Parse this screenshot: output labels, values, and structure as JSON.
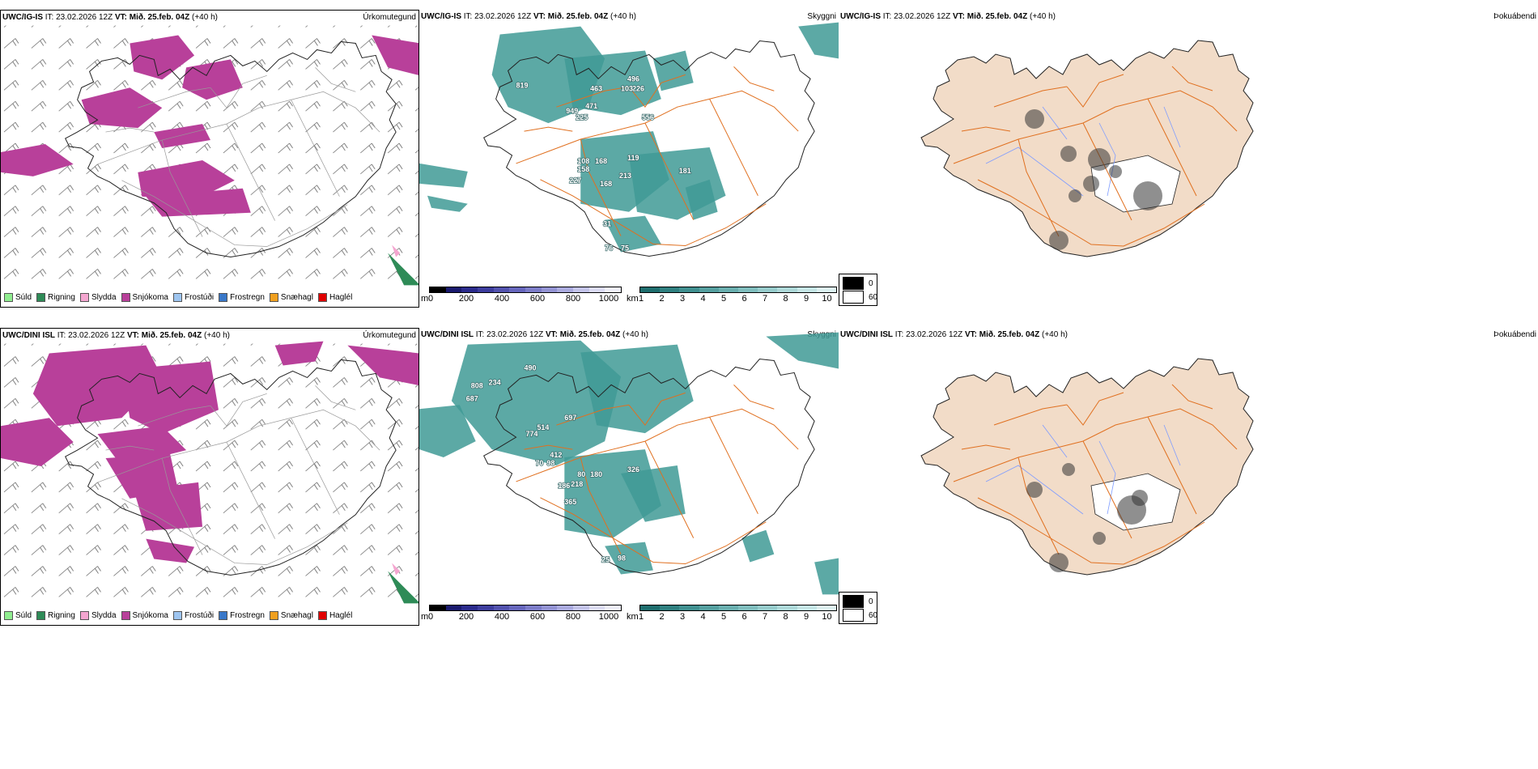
{
  "rows": [
    {
      "model": "UWC/IG-IS",
      "it_label": "IT:",
      "it_value": "23.02.2026 12Z",
      "vt_label": "VT:",
      "vt_value": "Mið. 25.feb. 04Z",
      "lead": "(+40 h)",
      "precip_title": "Úrkomutegund",
      "cloud_title": "Skyggni",
      "fog_title": "Þokuábendi",
      "cloud_numbers": [
        "819",
        "463",
        "496",
        "226",
        "103",
        "949",
        "471",
        "225",
        "556",
        "108",
        "168",
        "119",
        "158",
        "213",
        "227",
        "168",
        "181",
        "31",
        "76",
        "75"
      ]
    },
    {
      "model": "UWC/DINI ISL",
      "it_label": "IT:",
      "it_value": "23.02.2026 12Z",
      "vt_label": "VT:",
      "vt_value": "Mið. 25.feb. 04Z",
      "lead": "(+40 h)",
      "precip_title": "Úrkomutegund",
      "cloud_title": "Skyggni",
      "fog_title": "Þokuábendi",
      "cloud_numbers": [
        "490",
        "808",
        "234",
        "687",
        "514",
        "697",
        "774",
        "412",
        "70",
        "98",
        "80",
        "180",
        "326",
        "186",
        "218",
        "365",
        "25",
        "98"
      ]
    }
  ],
  "precip_legend": [
    {
      "label": "Súld",
      "color": "#90ee90"
    },
    {
      "label": "Rigning",
      "color": "#2e8b57"
    },
    {
      "label": "Slydda",
      "color": "#f4a6d0"
    },
    {
      "label": "Snjókoma",
      "color": "#b8409a"
    },
    {
      "label": "Frostúði",
      "color": "#9ec5f0"
    },
    {
      "label": "Frostregn",
      "color": "#3a78c8"
    },
    {
      "label": "Snæhagl",
      "color": "#f0a020"
    },
    {
      "label": "Haglél",
      "color": "#e00000"
    }
  ],
  "cloud_base_bar": {
    "unit": "m",
    "ticks": [
      "0",
      "200",
      "400",
      "600",
      "800",
      "1000"
    ],
    "colors": [
      "#000000",
      "#1a1a6e",
      "#2b2b8c",
      "#3d3d9e",
      "#5252ae",
      "#6767bd",
      "#7d7dc9",
      "#9494d4",
      "#ababdf",
      "#c4c4ea",
      "#dcdcf4",
      "#f0f0fa"
    ]
  },
  "visibility_bar": {
    "unit": "km",
    "ticks": [
      "1",
      "2",
      "3",
      "4",
      "5",
      "6",
      "7",
      "8",
      "9",
      "10"
    ],
    "colors": [
      "#1e6e6e",
      "#2f8080",
      "#409090",
      "#55a0a0",
      "#6aafaf",
      "#80bebe",
      "#97cccc",
      "#aed9d9",
      "#c6e6e6",
      "#ddf2f2"
    ]
  },
  "fog_legend": {
    "top": "0",
    "bottom": "60"
  },
  "colors": {
    "snow": "#b8409a",
    "cloud": "#3f9a95",
    "road": "#e07020",
    "land": "#f2dcc8",
    "river": "#7f9cff"
  }
}
